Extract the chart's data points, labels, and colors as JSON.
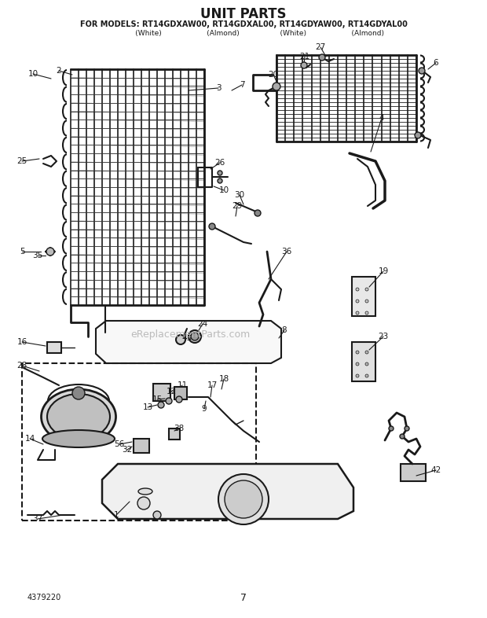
{
  "title": "UNIT PARTS",
  "subtitle": "FOR MODELS: RT14GDXAW00, RT14GDXAL00, RT14GDYAW00, RT14GDYAL00",
  "subtitle2": "              (White)                    (Almond)                  (White)                    (Almond)",
  "part_number": "4379220",
  "page_number": "7",
  "bg_color": "#ffffff",
  "lc": "#1a1a1a",
  "watermark": "eReplacementParts.com",
  "title_fs": 12,
  "sub_fs": 7,
  "lbl_fs": 7.5
}
